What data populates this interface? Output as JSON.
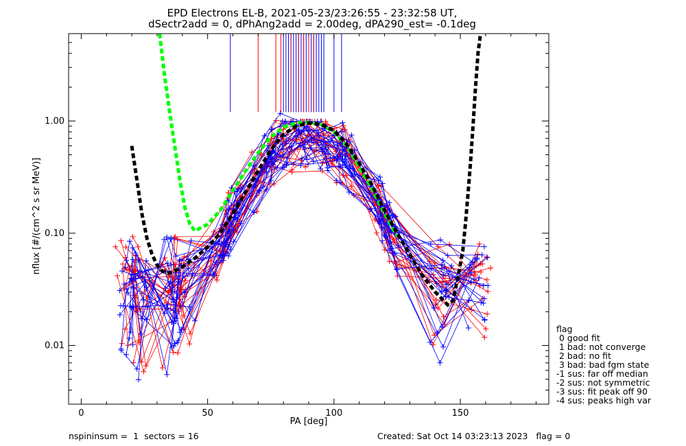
{
  "chart_data": {
    "type": "line",
    "title_line1": "EPD Electrons EL-B, 2021-05-23/23:26:55 - 23:32:58 UT,",
    "title_line2": "dSectr2add = 0, dPhAng2add = 2.00deg, dPA290_est=  -0.1deg",
    "xlabel": "PA [deg]",
    "ylabel": "nflux [#/(cm^2 s sr MeV)]",
    "xlim": [
      -5,
      185
    ],
    "ylim": [
      0.003,
      6.0
    ],
    "yscale": "log",
    "x_ticks": [
      0,
      50,
      100,
      150
    ],
    "x_tick_labels": [
      "0",
      "50",
      "100",
      "150"
    ],
    "y_ticks": [
      0.01,
      0.1,
      1.0
    ],
    "y_tick_labels": [
      "0.01",
      "0.10",
      "1.00"
    ],
    "vertical_lines": {
      "blue": [
        59,
        80,
        81,
        82,
        83,
        84,
        85,
        86,
        87,
        88,
        89,
        90,
        91,
        92,
        93,
        94,
        95,
        96,
        100,
        103
      ],
      "red": [
        70,
        77,
        79,
        83,
        86,
        88,
        90,
        92
      ],
      "ymin": 1.2,
      "ymax": 6.0
    },
    "green_fit": {
      "x": [
        31,
        33,
        35,
        37,
        39,
        41,
        43,
        45,
        50,
        55,
        60,
        65,
        70,
        75,
        80,
        85,
        90,
        95,
        100,
        105,
        110,
        115,
        120,
        125
      ],
      "y": [
        6.0,
        2.5,
        1.2,
        0.6,
        0.3,
        0.17,
        0.12,
        0.105,
        0.12,
        0.16,
        0.24,
        0.36,
        0.52,
        0.72,
        0.88,
        0.96,
        0.97,
        0.93,
        0.8,
        0.6,
        0.39,
        0.25,
        0.15,
        0.095
      ]
    },
    "black_fit": {
      "x": [
        20,
        22,
        24,
        26,
        28,
        30,
        32,
        34,
        36,
        40,
        45,
        50,
        55,
        60,
        65,
        70,
        75,
        80,
        85,
        90,
        95,
        100,
        105,
        110,
        115,
        120,
        125,
        130,
        135,
        140,
        145,
        147,
        149,
        151,
        152,
        153,
        154,
        155,
        156,
        157,
        158
      ],
      "y": [
        0.6,
        0.3,
        0.15,
        0.09,
        0.065,
        0.052,
        0.046,
        0.044,
        0.045,
        0.05,
        0.06,
        0.075,
        0.1,
        0.15,
        0.23,
        0.36,
        0.55,
        0.76,
        0.9,
        0.96,
        0.93,
        0.82,
        0.62,
        0.42,
        0.27,
        0.16,
        0.1,
        0.065,
        0.042,
        0.03,
        0.023,
        0.025,
        0.04,
        0.07,
        0.12,
        0.22,
        0.42,
        0.9,
        2.0,
        4.0,
        6.0
      ]
    },
    "legend": {
      "title": "flag",
      "entries": [
        " 0 good fit",
        " 1 bad: not converge",
        " 2 bad: no fit",
        " 3 bad: bad fgm state",
        "-1 sus: far off median",
        "-2 sus: not symmetric",
        "-3 sus: fit peak off 90",
        "-4 sus: peaks high var"
      ]
    },
    "colors": {
      "blue": "#0000ff",
      "red": "#ff0000",
      "green": "#00ff00",
      "black": "#000000"
    }
  },
  "footer": {
    "left": "nspininsum =  1  sectors = 16",
    "right": "Created: Sat Oct 14 03:23:13 2023   flag = 0"
  }
}
